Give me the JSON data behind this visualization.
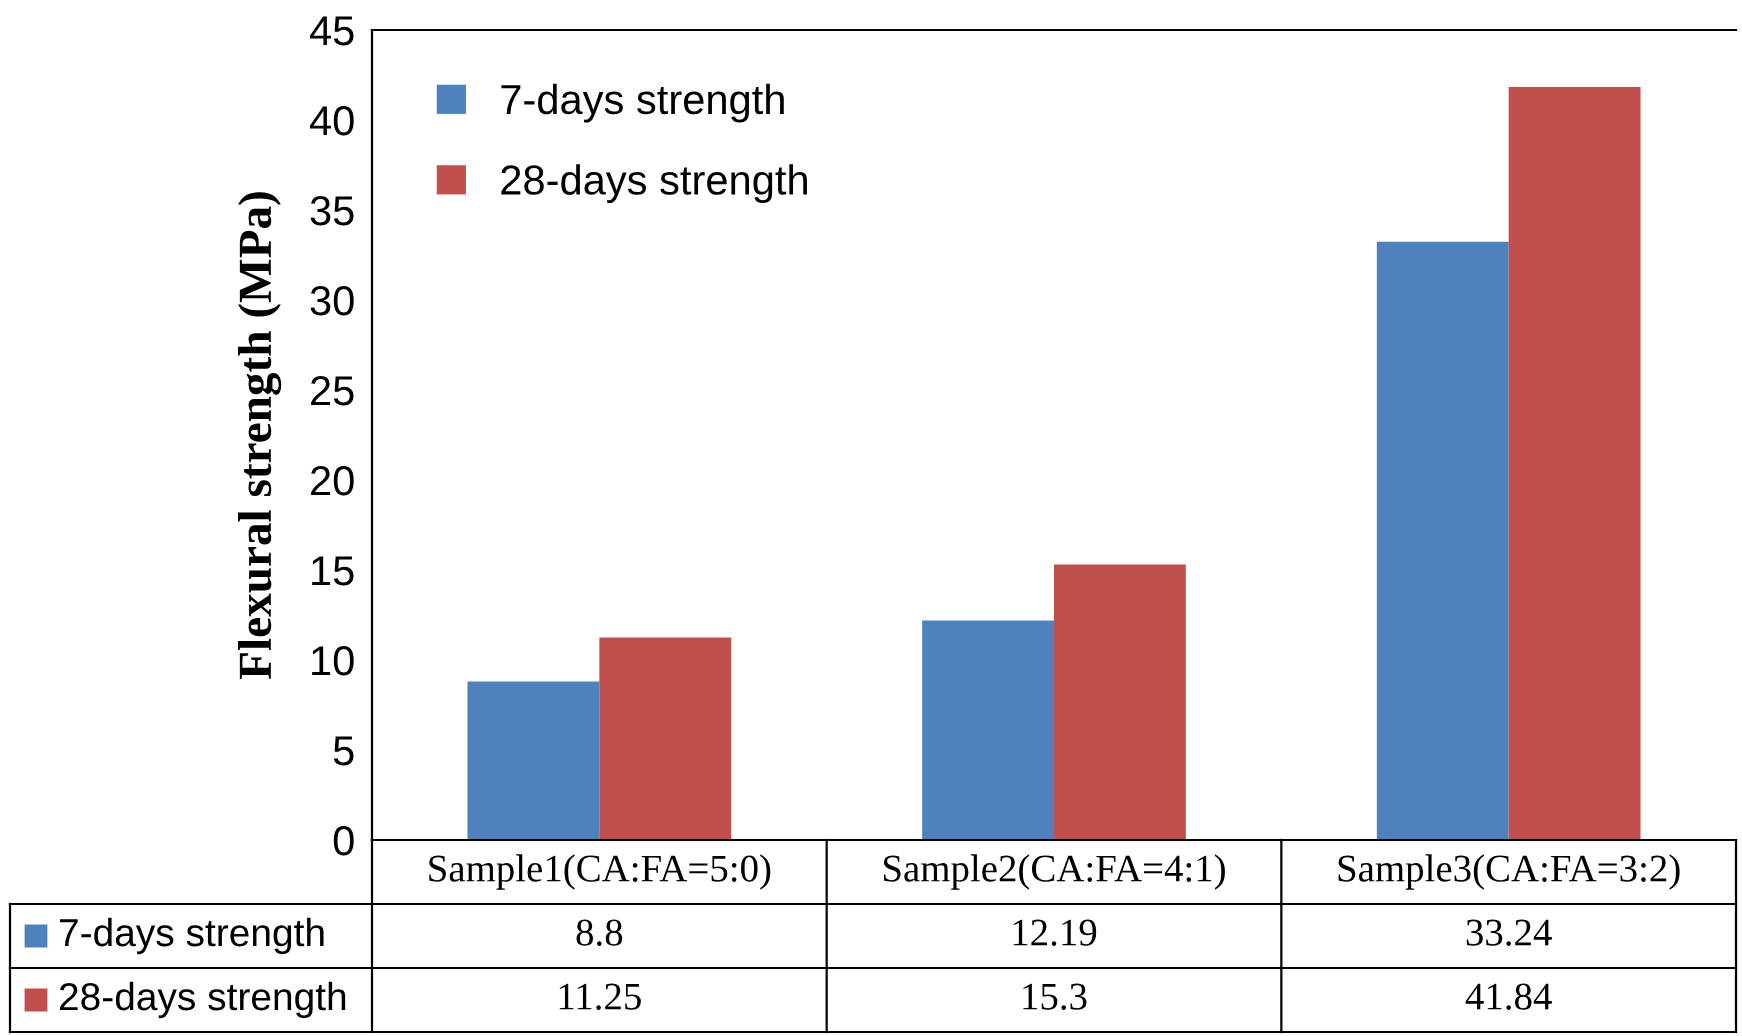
{
  "chart_data": {
    "type": "bar",
    "ylabel": "Flexural strength (MPa)",
    "categories": [
      "Sample1(CA:FA=5:0)",
      "Sample2(CA:FA=4:1)",
      "Sample3(CA:FA=3:2)"
    ],
    "series": [
      {
        "name": "7-days strength",
        "color": "#4f81bd",
        "values": [
          8.8,
          12.19,
          33.24
        ]
      },
      {
        "name": "28-days strength",
        "color": "#c0504d",
        "values": [
          11.25,
          15.3,
          41.84
        ]
      }
    ],
    "ylim": [
      0,
      45
    ],
    "yticks": [
      0,
      5,
      10,
      15,
      20,
      25,
      30,
      35,
      40,
      45
    ],
    "grid": false,
    "legend": "top left",
    "data_labels": true
  }
}
